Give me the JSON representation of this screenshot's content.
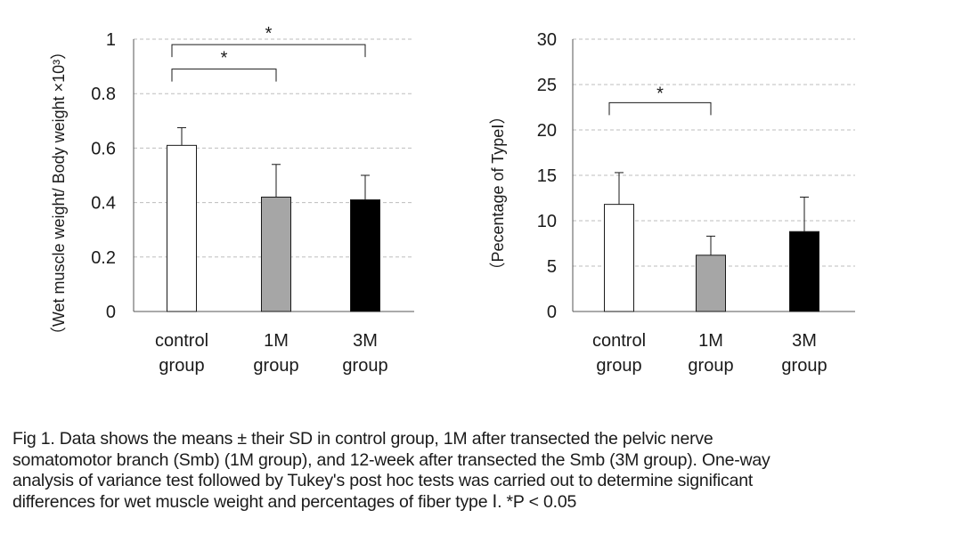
{
  "chart_data": [
    {
      "type": "bar",
      "categories": [
        "control\ngroup",
        "1M\ngroup",
        "3M\ngroup"
      ],
      "values": [
        0.61,
        0.42,
        0.41
      ],
      "errors": [
        0.065,
        0.12,
        0.09
      ],
      "bar_colors": [
        "#ffffff",
        "#a6a6a6",
        "#000000"
      ],
      "ylabel": "（Wet muscle weight/ Body weight ×10³）",
      "ylim": [
        0,
        1
      ],
      "yticks": [
        0,
        0.2,
        0.4,
        0.6,
        0.8,
        1
      ],
      "ytick_labels": [
        "0",
        "0.2",
        "0.4",
        "0.6",
        "0.8",
        "1"
      ],
      "grid": true,
      "significance": [
        {
          "from": 0,
          "to": 2,
          "level": 0.98,
          "label": "*"
        },
        {
          "from": 0,
          "to": 1,
          "level": 0.89,
          "label": "*"
        }
      ]
    },
    {
      "type": "bar",
      "categories": [
        "control\ngroup",
        "1M\ngroup",
        "3M\ngroup"
      ],
      "values": [
        11.8,
        6.2,
        8.8
      ],
      "errors": [
        3.5,
        2.1,
        3.8
      ],
      "bar_colors": [
        "#ffffff",
        "#a6a6a6",
        "#000000"
      ],
      "ylabel": "（Pecentage of TypeⅠ）",
      "ylim": [
        0,
        30
      ],
      "yticks": [
        0,
        5,
        10,
        15,
        20,
        25,
        30
      ],
      "ytick_labels": [
        "0",
        "5",
        "10",
        "15",
        "20",
        "25",
        "30"
      ],
      "grid": true,
      "significance": [
        {
          "from": 0,
          "to": 1,
          "level": 23.0,
          "label": "*"
        }
      ]
    }
  ],
  "caption": {
    "lines": [
      "Fig 1. Data shows the means ± their SD in control group, 1M after transected the pelvic nerve",
      "somatomotor branch (Smb) (1M group), and 12-week after transected the Smb (3M group). One-way",
      "analysis of variance test followed by Tukey's post hoc tests was carried out to determine significant",
      "differences for wet muscle weight and percentages of fiber type Ⅰ. *P < 0.05"
    ]
  }
}
